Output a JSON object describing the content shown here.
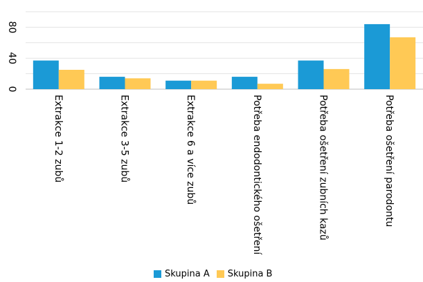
{
  "chart_data": {
    "type": "bar",
    "categories": [
      "Extrakce 1-2 zubů",
      "Extrakce 3-5 zubů",
      "Extrakce 6 a více zubů",
      "Potřeba endodontického ošetření",
      "Potřeba ošetření zubních kazů",
      "Potřeba ošetření parodontu"
    ],
    "series": [
      {
        "name": "Skupina A",
        "color": "#1b9ad6",
        "values": [
          37,
          16,
          11,
          16,
          37,
          84
        ]
      },
      {
        "name": "Skupina B",
        "color": "#ffc955",
        "values": [
          25,
          14,
          11,
          7,
          26,
          67
        ]
      }
    ],
    "yticks": [
      0,
      40,
      80
    ],
    "ylim": [
      0,
      100
    ],
    "grid": true,
    "legend_position": "bottom"
  }
}
